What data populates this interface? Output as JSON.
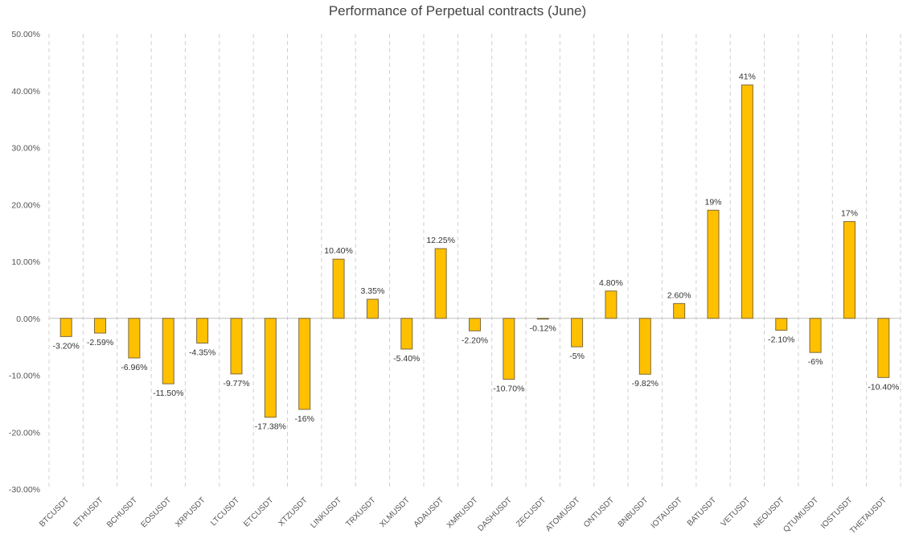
{
  "chart_data": {
    "type": "bar",
    "title": "Performance of Perpetual contracts (June)",
    "xlabel": "",
    "ylabel": "",
    "ylim": [
      -30,
      50
    ],
    "yticks": [
      "-30.00%",
      "-20.00%",
      "-10.00%",
      "0.00%",
      "10.00%",
      "20.00%",
      "30.00%",
      "40.00%",
      "50.00%"
    ],
    "grid": "vertical dashed",
    "legend": "none",
    "bar_color": "#FFC000",
    "bar_edge_color": "#7F6A3A",
    "categories": [
      "BTCUSDT",
      "ETHUSDT",
      "BCHUSDT",
      "EOSUSDT",
      "XRPUSDT",
      "LTCUSDT",
      "ETCUSDT",
      "XTZUSDT",
      "LINKUSDT",
      "TRXUSDT",
      "XLMUSDT",
      "ADAUSDT",
      "XMRUSDT",
      "DASHUSDT",
      "ZECUSDT",
      "ATOMUSDT",
      "ONTUSDT",
      "BNBUSDT",
      "IOTAUSDT",
      "BATUSDT",
      "VETUSDT",
      "NEOUSDT",
      "QTUMUSDT",
      "IOSTUSDT",
      "THETAUSDT"
    ],
    "values": [
      -3.2,
      -2.59,
      -6.96,
      -11.5,
      -4.35,
      -9.77,
      -17.38,
      -16,
      10.4,
      3.35,
      -5.4,
      12.25,
      -2.2,
      -10.7,
      -0.12,
      -5,
      4.8,
      -9.82,
      2.6,
      19,
      41,
      -2.1,
      -6,
      17,
      -10.4
    ],
    "labels": [
      "-3.20%",
      "-2.59%",
      "-6.96%",
      "-11.50%",
      "-4.35%",
      "-9.77%",
      "-17.38%",
      "-16%",
      "10.40%",
      "3.35%",
      "-5.40%",
      "12.25%",
      "-2.20%",
      "-10.70%",
      "-0.12%",
      "-5%",
      "4.80%",
      "-9.82%",
      "2.60%",
      "19%",
      "41%",
      "-2.10%",
      "-6%",
      "17%",
      "-10.40%"
    ]
  }
}
